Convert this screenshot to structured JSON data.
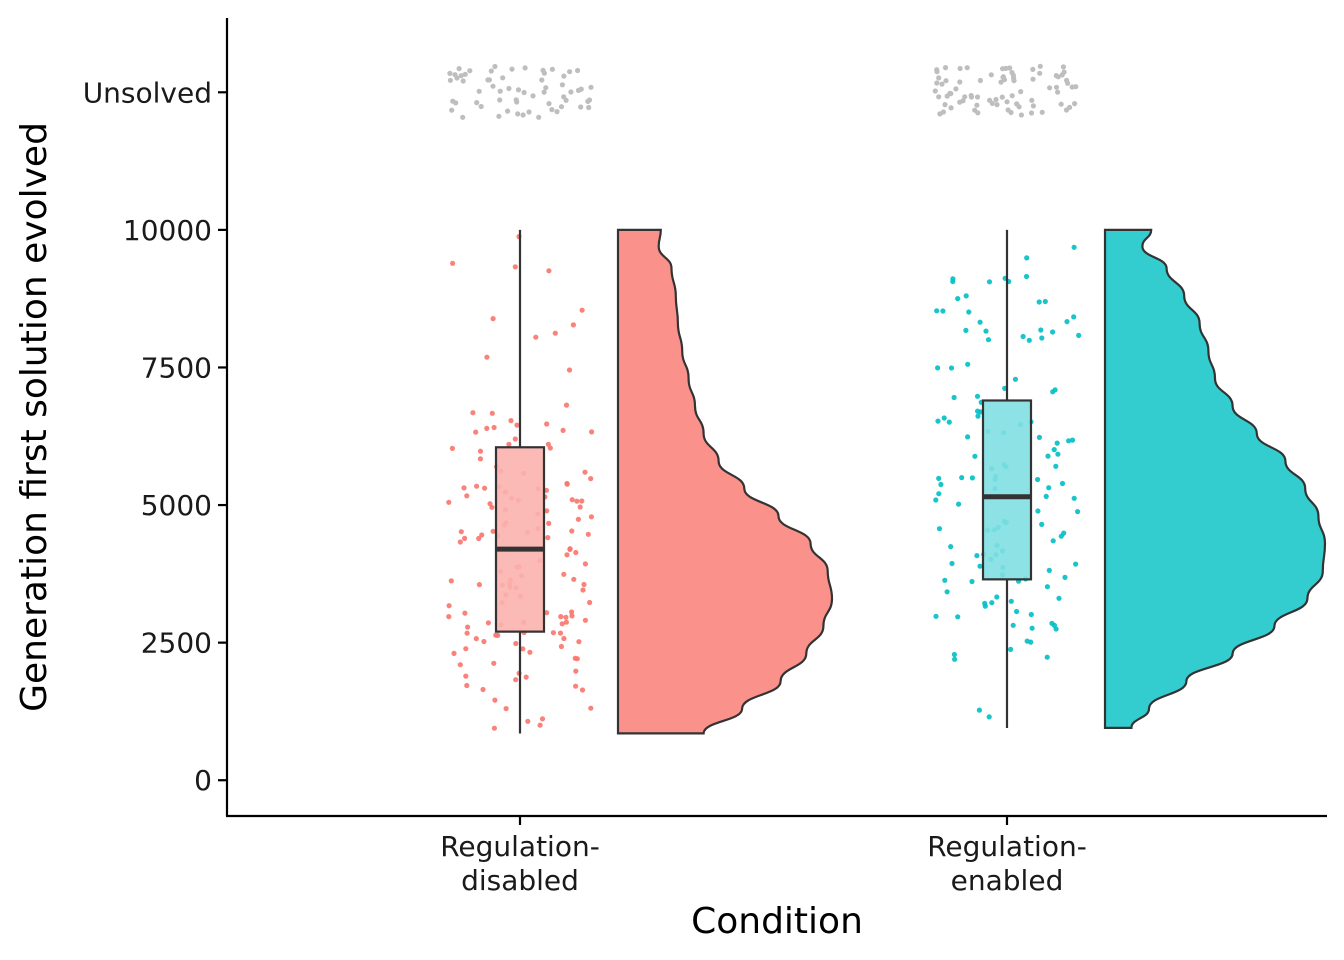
{
  "chart_data": {
    "type": "raincloud",
    "xlabel": "Condition",
    "ylabel": "Generation first solution evolved",
    "ylim": [
      -650,
      13850
    ],
    "y_ticks": [
      0,
      2500,
      5000,
      7500,
      10000
    ],
    "unsolved_label": "Unsolved",
    "unsolved_y": 12500,
    "legend": "none",
    "grid": false,
    "unsolved_color": "#bebebe",
    "groups": [
      {
        "label_lines": [
          "Regulation-",
          "disabled"
        ],
        "color": "#f8766d",
        "box_fill": "#fbb3ae",
        "violin_fill": "#fa928b",
        "min": 850,
        "q1": 2700,
        "median": 4200,
        "q3": 6050,
        "max": 10000,
        "density": [
          [
            850,
            0.4
          ],
          [
            1300,
            0.58
          ],
          [
            1800,
            0.76
          ],
          [
            2300,
            0.88
          ],
          [
            2800,
            0.96
          ],
          [
            3300,
            1.0
          ],
          [
            3800,
            0.98
          ],
          [
            4300,
            0.9
          ],
          [
            4800,
            0.75
          ],
          [
            5300,
            0.59
          ],
          [
            5800,
            0.47
          ],
          [
            6300,
            0.4
          ],
          [
            6800,
            0.36
          ],
          [
            7300,
            0.33
          ],
          [
            7800,
            0.3
          ],
          [
            8300,
            0.28
          ],
          [
            8800,
            0.27
          ],
          [
            9300,
            0.25
          ],
          [
            9700,
            0.19
          ],
          [
            10000,
            0.2
          ]
        ],
        "n_solved": 150,
        "n_unsolved": 62
      },
      {
        "label_lines": [
          "Regulation-",
          "enabled"
        ],
        "color": "#00bfc4",
        "box_fill": "#7fdfe1",
        "violin_fill": "#33cccf",
        "min": 950,
        "q1": 3650,
        "median": 5150,
        "q3": 6900,
        "max": 10000,
        "density": [
          [
            950,
            0.12
          ],
          [
            1300,
            0.2
          ],
          [
            1800,
            0.37
          ],
          [
            2300,
            0.58
          ],
          [
            2800,
            0.77
          ],
          [
            3300,
            0.92
          ],
          [
            3800,
            0.99
          ],
          [
            4300,
            1.0
          ],
          [
            4800,
            0.97
          ],
          [
            5300,
            0.91
          ],
          [
            5800,
            0.82
          ],
          [
            6300,
            0.69
          ],
          [
            6800,
            0.58
          ],
          [
            7300,
            0.5
          ],
          [
            7800,
            0.47
          ],
          [
            8300,
            0.43
          ],
          [
            8800,
            0.36
          ],
          [
            9300,
            0.28
          ],
          [
            9700,
            0.17
          ],
          [
            10000,
            0.21
          ]
        ],
        "n_solved": 130,
        "n_unsolved": 80
      }
    ]
  }
}
